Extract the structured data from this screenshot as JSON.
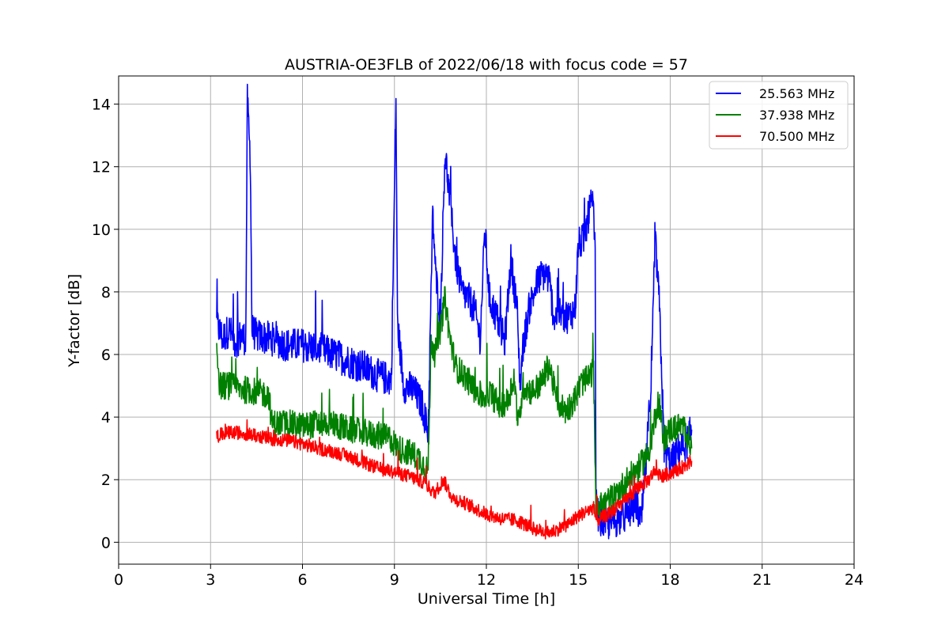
{
  "chart_data": {
    "type": "line",
    "title": "AUSTRIA-OE3FLB of 2022/06/18 with focus code = 57",
    "xlabel": "Universal Time [h]",
    "ylabel": "Y-factor [dB]",
    "xlim": [
      0,
      24
    ],
    "ylim": [
      -0.7,
      14.9
    ],
    "xticks": [
      "0",
      "3",
      "6",
      "9",
      "12",
      "15",
      "18",
      "21",
      "24"
    ],
    "yticks": [
      "0",
      "2",
      "4",
      "6",
      "8",
      "10",
      "12",
      "14"
    ],
    "grid": true,
    "legend_position": "top-right",
    "series": [
      {
        "name": "25.563 MHz",
        "color": "#0000ff",
        "points": [
          [
            3.2,
            7.0
          ],
          [
            3.4,
            6.5
          ],
          [
            3.6,
            6.8
          ],
          [
            3.8,
            6.4
          ],
          [
            4.0,
            6.6
          ],
          [
            4.15,
            6.5
          ],
          [
            4.2,
            14.1
          ],
          [
            4.3,
            12.2
          ],
          [
            4.35,
            6.8
          ],
          [
            4.5,
            6.6
          ],
          [
            5.0,
            6.5
          ],
          [
            5.5,
            6.3
          ],
          [
            6.0,
            6.3
          ],
          [
            6.5,
            6.2
          ],
          [
            7.0,
            6.0
          ],
          [
            7.5,
            5.8
          ],
          [
            8.0,
            5.6
          ],
          [
            8.5,
            5.3
          ],
          [
            8.9,
            5.2
          ],
          [
            9.05,
            14.1
          ],
          [
            9.1,
            7.0
          ],
          [
            9.3,
            5.0
          ],
          [
            9.6,
            4.9
          ],
          [
            9.9,
            4.4
          ],
          [
            10.1,
            3.5
          ],
          [
            10.25,
            10.5
          ],
          [
            10.35,
            8.5
          ],
          [
            10.5,
            7.2
          ],
          [
            10.65,
            12.5
          ],
          [
            10.8,
            11.0
          ],
          [
            11.0,
            9.0
          ],
          [
            11.2,
            8.0
          ],
          [
            11.4,
            7.8
          ],
          [
            11.6,
            7.5
          ],
          [
            11.8,
            6.5
          ],
          [
            11.95,
            10.0
          ],
          [
            12.1,
            7.8
          ],
          [
            12.4,
            7.0
          ],
          [
            12.6,
            6.4
          ],
          [
            12.8,
            9.0
          ],
          [
            13.0,
            7.5
          ],
          [
            13.1,
            5.0
          ],
          [
            13.2,
            6.3
          ],
          [
            13.4,
            7.5
          ],
          [
            13.7,
            8.4
          ],
          [
            13.9,
            8.6
          ],
          [
            14.05,
            8.4
          ],
          [
            14.2,
            7.2
          ],
          [
            14.4,
            7.3
          ],
          [
            14.7,
            7.2
          ],
          [
            14.9,
            7.5
          ],
          [
            15.0,
            9.5
          ],
          [
            15.2,
            9.7
          ],
          [
            15.4,
            10.8
          ],
          [
            15.5,
            10.6
          ],
          [
            15.55,
            9.1
          ],
          [
            15.58,
            1.2
          ],
          [
            15.7,
            0.7
          ],
          [
            16.0,
            0.6
          ],
          [
            16.5,
            0.8
          ],
          [
            16.9,
            1.2
          ],
          [
            17.05,
            0.6
          ],
          [
            17.2,
            2.4
          ],
          [
            17.4,
            5.5
          ],
          [
            17.5,
            9.8
          ],
          [
            17.65,
            7.5
          ],
          [
            17.8,
            3.0
          ],
          [
            18.0,
            2.5
          ],
          [
            18.3,
            3.0
          ],
          [
            18.5,
            3.1
          ],
          [
            18.7,
            3.6
          ]
        ],
        "noise": 0.55
      },
      {
        "name": "37.938 MHz",
        "color": "#008000",
        "points": [
          [
            3.2,
            6.3
          ],
          [
            3.3,
            5.0
          ],
          [
            3.6,
            5.0
          ],
          [
            4.0,
            4.9
          ],
          [
            4.5,
            4.8
          ],
          [
            4.9,
            4.7
          ],
          [
            5.0,
            3.8
          ],
          [
            5.5,
            3.8
          ],
          [
            6.0,
            3.7
          ],
          [
            6.5,
            3.8
          ],
          [
            7.0,
            3.8
          ],
          [
            7.5,
            3.6
          ],
          [
            8.0,
            3.5
          ],
          [
            8.5,
            3.4
          ],
          [
            8.9,
            3.3
          ],
          [
            9.1,
            3.0
          ],
          [
            9.4,
            2.9
          ],
          [
            9.8,
            2.7
          ],
          [
            10.1,
            2.3
          ],
          [
            10.2,
            6.5
          ],
          [
            10.3,
            6.0
          ],
          [
            10.5,
            6.8
          ],
          [
            10.65,
            7.8
          ],
          [
            10.8,
            6.6
          ],
          [
            11.0,
            5.6
          ],
          [
            11.3,
            5.3
          ],
          [
            11.6,
            4.9
          ],
          [
            11.9,
            4.6
          ],
          [
            12.1,
            4.8
          ],
          [
            12.4,
            4.4
          ],
          [
            12.7,
            4.5
          ],
          [
            12.9,
            5.3
          ],
          [
            13.05,
            3.7
          ],
          [
            13.2,
            5.0
          ],
          [
            13.5,
            4.8
          ],
          [
            13.8,
            5.1
          ],
          [
            14.05,
            5.7
          ],
          [
            14.3,
            4.5
          ],
          [
            14.6,
            4.2
          ],
          [
            14.9,
            4.6
          ],
          [
            15.1,
            5.1
          ],
          [
            15.3,
            5.2
          ],
          [
            15.5,
            5.5
          ],
          [
            15.58,
            1.0
          ],
          [
            15.8,
            1.2
          ],
          [
            16.2,
            1.5
          ],
          [
            16.6,
            2.0
          ],
          [
            17.0,
            2.4
          ],
          [
            17.3,
            2.9
          ],
          [
            17.6,
            4.5
          ],
          [
            17.8,
            3.3
          ],
          [
            18.0,
            3.6
          ],
          [
            18.3,
            3.7
          ],
          [
            18.5,
            3.6
          ],
          [
            18.7,
            3.0
          ]
        ],
        "noise": 0.45
      },
      {
        "name": "70.500 MHz",
        "color": "#ff0000",
        "points": [
          [
            3.2,
            3.4
          ],
          [
            3.6,
            3.5
          ],
          [
            4.0,
            3.5
          ],
          [
            4.5,
            3.4
          ],
          [
            5.0,
            3.3
          ],
          [
            5.5,
            3.25
          ],
          [
            6.0,
            3.15
          ],
          [
            6.5,
            3.0
          ],
          [
            7.0,
            2.9
          ],
          [
            7.5,
            2.75
          ],
          [
            8.0,
            2.55
          ],
          [
            8.5,
            2.35
          ],
          [
            9.0,
            2.25
          ],
          [
            9.5,
            2.1
          ],
          [
            10.0,
            1.9
          ],
          [
            10.3,
            1.55
          ],
          [
            10.6,
            2.0
          ],
          [
            10.9,
            1.4
          ],
          [
            11.2,
            1.3
          ],
          [
            11.6,
            1.1
          ],
          [
            12.0,
            0.9
          ],
          [
            12.5,
            0.75
          ],
          [
            13.0,
            0.7
          ],
          [
            13.5,
            0.45
          ],
          [
            14.0,
            0.3
          ],
          [
            14.3,
            0.4
          ],
          [
            14.7,
            0.6
          ],
          [
            15.0,
            0.85
          ],
          [
            15.3,
            1.0
          ],
          [
            15.5,
            1.1
          ],
          [
            15.6,
            0.7
          ],
          [
            16.0,
            0.9
          ],
          [
            16.5,
            1.3
          ],
          [
            17.0,
            1.8
          ],
          [
            17.3,
            2.0
          ],
          [
            17.5,
            2.3
          ],
          [
            17.7,
            2.1
          ],
          [
            18.0,
            2.2
          ],
          [
            18.4,
            2.4
          ],
          [
            18.7,
            2.6
          ]
        ],
        "noise": 0.22
      }
    ]
  }
}
